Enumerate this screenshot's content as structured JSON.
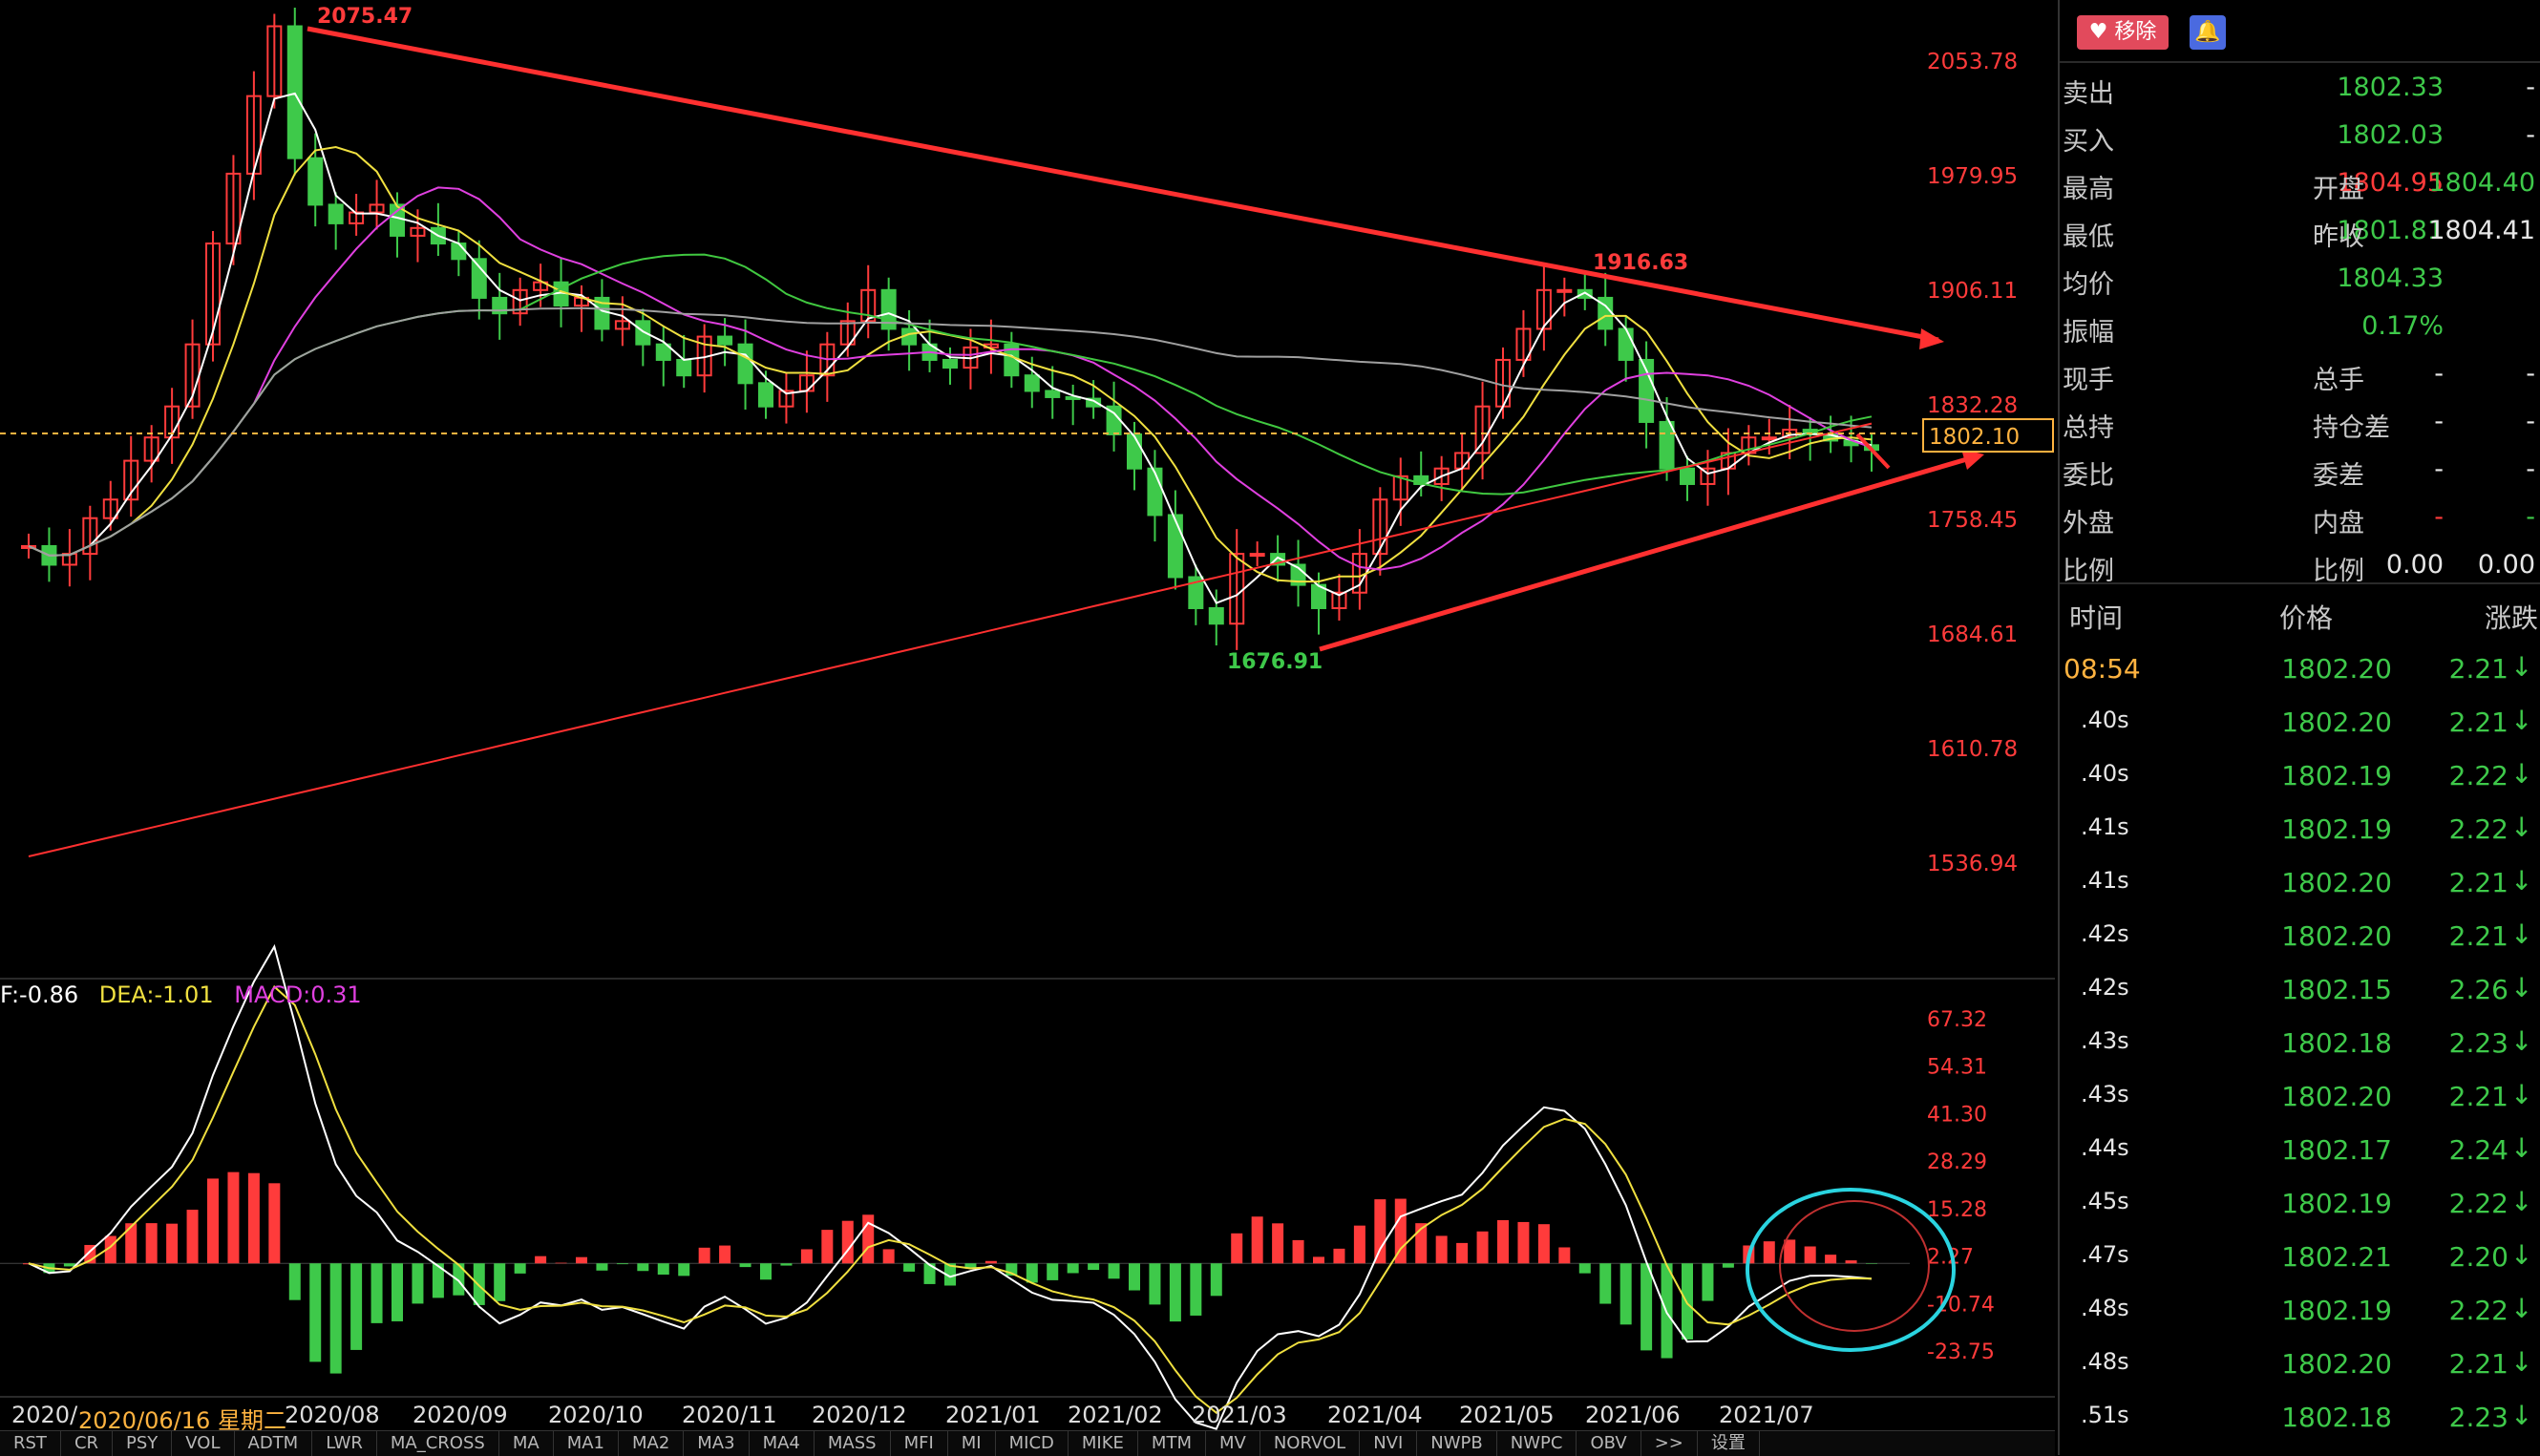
{
  "chart_data": {
    "type": "line",
    "title": "",
    "price_axis_labels": [
      "2053.78",
      "1979.95",
      "1906.11",
      "1832.28",
      "1758.45",
      "1684.61",
      "1610.78",
      "1536.94"
    ],
    "current_price_marker": "1802.10",
    "annotations": [
      {
        "text": "2075.47",
        "kind": "high"
      },
      {
        "text": "1916.63",
        "kind": "high"
      },
      {
        "text": "1676.91",
        "kind": "low"
      }
    ],
    "x_labels": [
      "2020/",
      "2020/06/16 星期二",
      "2020/08",
      "2020/09",
      "2020/10",
      "2020/11",
      "2020/12",
      "2021/01",
      "2021/02",
      "2021/03",
      "2021/04",
      "2021/05",
      "2021/06",
      "2021/07"
    ],
    "macd_axis_labels": [
      "67.32",
      "54.31",
      "41.30",
      "28.29",
      "15.28",
      "2.27",
      "-10.74",
      "-23.75"
    ],
    "macd_legend": {
      "dif": "F:-0.86",
      "dea": "DEA:-1.01",
      "macd": "MACD:0.31"
    },
    "price_close": [
      1740,
      1728,
      1735,
      1758,
      1770,
      1795,
      1810,
      1830,
      1870,
      1935,
      1980,
      2030,
      2075,
      1990,
      1960,
      1948,
      1955,
      1960,
      1940,
      1945,
      1935,
      1925,
      1900,
      1890,
      1905,
      1910,
      1895,
      1900,
      1880,
      1885,
      1870,
      1860,
      1850,
      1875,
      1870,
      1845,
      1830,
      1840,
      1850,
      1870,
      1885,
      1905,
      1880,
      1870,
      1860,
      1855,
      1868,
      1870,
      1850,
      1840,
      1836,
      1835,
      1830,
      1812,
      1790,
      1760,
      1720,
      1700,
      1690,
      1735,
      1735,
      1728,
      1715,
      1700,
      1710,
      1735,
      1770,
      1785,
      1780,
      1790,
      1800,
      1830,
      1860,
      1880,
      1905,
      1905,
      1900,
      1880,
      1860,
      1820,
      1790,
      1780,
      1790,
      1800,
      1810,
      1810,
      1815,
      1812,
      1808,
      1805,
      1802
    ],
    "ma_colors": [
      "#ffffff",
      "#f0e040",
      "#e040e0",
      "#40c840",
      "#a0a0a0",
      "#ff3030"
    ]
  },
  "macd_legend_colors": {
    "dif": "#ffffff",
    "dea": "#f0e040",
    "macd": "#e040e0"
  },
  "panel": {
    "remove_label": "移除",
    "bell_icon": "bell-icon",
    "quote_rows": [
      {
        "l1": "卖出",
        "v1": "1802.33",
        "c1": "green",
        "l2": "",
        "v2": "-",
        "c2": "white"
      },
      {
        "l1": "买入",
        "v1": "1802.03",
        "c1": "green",
        "l2": "",
        "v2": "-",
        "c2": "white"
      },
      {
        "l1": "最高",
        "v1": "1804.95",
        "c1": "red",
        "l2": "开盘",
        "v2": "1804.40",
        "c2": "green"
      },
      {
        "l1": "最低",
        "v1": "1801.81",
        "c1": "green",
        "l2": "昨收",
        "v2": "1804.41",
        "c2": "white"
      },
      {
        "l1": "均价",
        "v1": "1804.33",
        "c1": "green",
        "l2": "",
        "v2": "",
        "c2": "white"
      },
      {
        "l1": "振幅",
        "v1": "0.17%",
        "c1": "green",
        "l2": "",
        "v2": "",
        "c2": "white"
      },
      {
        "l1": "现手",
        "v1": "-",
        "c1": "white",
        "l2": "总手",
        "v2": "-",
        "c2": "white"
      },
      {
        "l1": "总持",
        "v1": "-",
        "c1": "white",
        "l2": "持仓差",
        "v2": "-",
        "c2": "white"
      },
      {
        "l1": "委比",
        "v1": "-",
        "c1": "white",
        "l2": "委差",
        "v2": "-",
        "c2": "white"
      },
      {
        "l1": "外盘",
        "v1": "-",
        "c1": "red",
        "l2": "内盘",
        "v2": "-",
        "c2": "green"
      },
      {
        "l1": "比例",
        "v1": "0.00",
        "c1": "white",
        "l2": "比例",
        "v2": "0.00",
        "c2": "white"
      }
    ],
    "ticks_header": {
      "time": "时间",
      "price": "价格",
      "change": "涨跌"
    },
    "ticks": [
      {
        "time": "08:54",
        "price": "1802.20",
        "change": "2.21"
      },
      {
        "time": ".40s",
        "price": "1802.20",
        "change": "2.21"
      },
      {
        "time": ".40s",
        "price": "1802.19",
        "change": "2.22"
      },
      {
        "time": ".41s",
        "price": "1802.19",
        "change": "2.22"
      },
      {
        "time": ".41s",
        "price": "1802.20",
        "change": "2.21"
      },
      {
        "time": ".42s",
        "price": "1802.20",
        "change": "2.21"
      },
      {
        "time": ".42s",
        "price": "1802.15",
        "change": "2.26"
      },
      {
        "time": ".43s",
        "price": "1802.18",
        "change": "2.23"
      },
      {
        "time": ".43s",
        "price": "1802.20",
        "change": "2.21"
      },
      {
        "time": ".44s",
        "price": "1802.17",
        "change": "2.24"
      },
      {
        "time": ".45s",
        "price": "1802.19",
        "change": "2.22"
      },
      {
        "time": ".47s",
        "price": "1802.21",
        "change": "2.20"
      },
      {
        "time": ".48s",
        "price": "1802.19",
        "change": "2.22"
      },
      {
        "time": ".48s",
        "price": "1802.20",
        "change": "2.21"
      },
      {
        "time": ".51s",
        "price": "1802.18",
        "change": "2.23"
      }
    ]
  },
  "indicator_tabs": [
    "RST",
    "CR",
    "PSY",
    "VOL",
    "ADTM",
    "LWR",
    "MA_CROSS",
    "MA",
    "MA1",
    "MA2",
    "MA3",
    "MA4",
    "MASS",
    "MFI",
    "MI",
    "MICD",
    "MIKE",
    "MTM",
    "MV",
    "NORVOL",
    "NVI",
    "NWPB",
    "NWPC",
    "OBV",
    ">>",
    "设置"
  ]
}
